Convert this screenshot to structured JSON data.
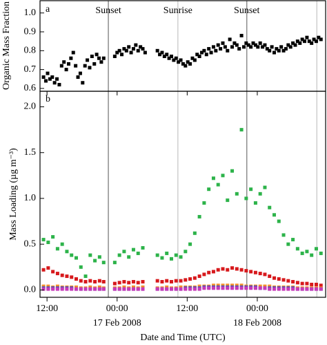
{
  "chart_data": [
    {
      "type": "scatter",
      "panel_label": "a",
      "ylabel": "Organic Mass Fraction",
      "xlim": [
        10.8,
        59.7
      ],
      "ylim": [
        0.585,
        1.065
      ],
      "xticks": [
        12,
        24,
        36,
        48
      ],
      "yticks": [
        0.6,
        0.7,
        0.8,
        0.9,
        {
          "value": 1,
          "label": "1.0"
        }
      ],
      "annotations": [
        {
          "x": 22.5,
          "text": "Sunset",
          "color": "#8c8c8c"
        },
        {
          "x": 34.4,
          "text": "Sunrise",
          "color": "#cfcfcf"
        },
        {
          "x": 46.2,
          "text": "Sunset",
          "color": "#8c8c8c"
        },
        {
          "x": 58.2,
          "color": "#cfcfcf"
        }
      ],
      "x": [
        11.4,
        11.8,
        12.1,
        12.5,
        12.9,
        13.3,
        13.7,
        14.1,
        14.5,
        14.9,
        15.3,
        15.7,
        16.1,
        16.5,
        16.9,
        17.3,
        17.7,
        18.1,
        18.5,
        18.9,
        19.3,
        19.7,
        20.1,
        20.5,
        20.9,
        21.3,
        21.7,
        23.6,
        24.0,
        24.4,
        24.8,
        25.2,
        25.6,
        26.0,
        26.4,
        26.8,
        27.2,
        27.6,
        28.0,
        28.4,
        28.8,
        30.9,
        31.3,
        31.7,
        32.1,
        32.5,
        32.9,
        33.3,
        33.7,
        34.1,
        34.5,
        34.9,
        35.3,
        35.7,
        36.1,
        36.5,
        36.9,
        37.3,
        37.7,
        38.1,
        38.5,
        38.9,
        39.3,
        39.7,
        40.1,
        40.5,
        40.9,
        41.3,
        41.7,
        42.1,
        42.5,
        42.9,
        43.3,
        43.7,
        44.1,
        44.5,
        44.9,
        45.3,
        45.7,
        46.1,
        46.5,
        46.9,
        47.3,
        47.7,
        48.1,
        48.5,
        48.9,
        49.3,
        49.7,
        50.1,
        50.5,
        50.9,
        51.3,
        51.7,
        52.1,
        52.5,
        52.9,
        53.3,
        53.7,
        54.1,
        54.5,
        54.9,
        55.3,
        55.7,
        56.1,
        56.5,
        56.9,
        57.3,
        57.7,
        58.1,
        58.5,
        58.9
      ],
      "series": [
        {
          "color": "#000000",
          "values": [
            0.66,
            0.64,
            0.68,
            0.65,
            0.66,
            0.63,
            0.65,
            0.62,
            0.72,
            0.74,
            0.7,
            0.73,
            0.76,
            0.79,
            0.72,
            0.66,
            0.68,
            0.63,
            0.72,
            0.75,
            0.71,
            0.77,
            0.73,
            0.78,
            0.76,
            0.74,
            0.76,
            0.77,
            0.79,
            0.8,
            0.78,
            0.81,
            0.8,
            0.82,
            0.79,
            0.81,
            0.83,
            0.8,
            0.82,
            0.81,
            0.79,
            0.8,
            0.78,
            0.79,
            0.77,
            0.78,
            0.76,
            0.77,
            0.75,
            0.76,
            0.74,
            0.75,
            0.73,
            0.72,
            0.74,
            0.73,
            0.76,
            0.75,
            0.78,
            0.77,
            0.79,
            0.8,
            0.78,
            0.81,
            0.79,
            0.82,
            0.8,
            0.83,
            0.81,
            0.84,
            0.82,
            0.8,
            0.86,
            0.82,
            0.84,
            0.83,
            0.81,
            0.88,
            0.82,
            0.84,
            0.83,
            0.82,
            0.84,
            0.83,
            0.82,
            0.84,
            0.82,
            0.83,
            0.81,
            0.8,
            0.82,
            0.79,
            0.81,
            0.8,
            0.82,
            0.8,
            0.81,
            0.83,
            0.82,
            0.84,
            0.83,
            0.85,
            0.84,
            0.86,
            0.85,
            0.87,
            0.85,
            0.84,
            0.86,
            0.85,
            0.87,
            0.86
          ]
        }
      ]
    },
    {
      "type": "scatter",
      "panel_label": "b",
      "ylabel": "Mass Loading (µg m⁻³)",
      "xlabel": "Date and Time (UTC)",
      "xlim": [
        10.8,
        59.7
      ],
      "ylim": [
        -0.08,
        2.17
      ],
      "xticks": [
        {
          "value": 12,
          "label": "12:00"
        },
        {
          "value": 24,
          "label": "00:00"
        },
        {
          "value": 36,
          "label": "12:00"
        },
        {
          "value": 48,
          "label": "00:00"
        }
      ],
      "yticks": [
        {
          "value": 0,
          "label": "0.0"
        },
        0.5,
        {
          "value": 1,
          "label": "1.0"
        },
        1.5,
        {
          "value": 2,
          "label": "2.0"
        }
      ],
      "date_labels": [
        {
          "x": 24,
          "text": "17 Feb 2008"
        },
        {
          "x": 48,
          "text": "18 Feb 2008"
        }
      ],
      "x": [
        11.4,
        12.2,
        13.0,
        13.8,
        14.6,
        15.4,
        16.2,
        17.0,
        17.8,
        18.6,
        19.4,
        20.2,
        21.0,
        21.7,
        23.6,
        24.4,
        25.2,
        26.0,
        26.8,
        27.6,
        28.4,
        30.9,
        31.7,
        32.5,
        33.3,
        34.1,
        34.9,
        35.7,
        36.5,
        37.3,
        38.1,
        38.9,
        39.7,
        40.5,
        41.3,
        42.1,
        42.9,
        43.7,
        44.5,
        45.3,
        46.1,
        46.9,
        47.7,
        48.5,
        49.3,
        50.1,
        50.9,
        51.7,
        52.5,
        53.3,
        54.1,
        54.9,
        55.7,
        56.5,
        57.3,
        58.1,
        58.9
      ],
      "series": [
        {
          "color": "#2db34a",
          "values": [
            0.55,
            0.52,
            0.58,
            0.45,
            0.5,
            0.42,
            0.38,
            0.35,
            0.25,
            0.15,
            0.38,
            0.32,
            0.36,
            0.3,
            0.3,
            0.38,
            0.42,
            0.36,
            0.44,
            0.4,
            0.46,
            0.38,
            0.35,
            0.4,
            0.34,
            0.38,
            0.36,
            0.42,
            0.5,
            0.62,
            0.8,
            0.95,
            1.1,
            1.22,
            1.15,
            1.25,
            0.98,
            1.3,
            1.05,
            1.75,
            1.0,
            1.1,
            0.95,
            1.05,
            1.12,
            0.9,
            0.82,
            0.75,
            0.6,
            0.5,
            0.55,
            0.45,
            0.4,
            0.42,
            0.38,
            0.45,
            0.4
          ]
        },
        {
          "color": "#d7191c",
          "values": [
            0.22,
            0.24,
            0.2,
            0.18,
            0.16,
            0.15,
            0.14,
            0.12,
            0.1,
            0.09,
            0.1,
            0.09,
            0.1,
            0.09,
            0.07,
            0.08,
            0.09,
            0.08,
            0.09,
            0.08,
            0.09,
            0.1,
            0.09,
            0.1,
            0.09,
            0.1,
            0.1,
            0.11,
            0.12,
            0.13,
            0.15,
            0.17,
            0.19,
            0.2,
            0.22,
            0.23,
            0.22,
            0.24,
            0.23,
            0.22,
            0.21,
            0.2,
            0.19,
            0.18,
            0.17,
            0.15,
            0.13,
            0.12,
            0.11,
            0.1,
            0.09,
            0.08,
            0.07,
            0.07,
            0.06,
            0.06,
            0.05
          ]
        },
        {
          "color": "#f28e2b",
          "values": [
            0.04,
            0.04,
            0.03,
            0.04,
            0.03,
            0.03,
            0.03,
            0.03,
            0.02,
            0.02,
            0.03,
            0.02,
            0.03,
            0.02,
            0.02,
            0.02,
            0.03,
            0.02,
            0.03,
            0.02,
            0.03,
            0.02,
            0.02,
            0.03,
            0.02,
            0.02,
            0.03,
            0.03,
            0.03,
            0.03,
            0.04,
            0.04,
            0.04,
            0.05,
            0.05,
            0.05,
            0.05,
            0.05,
            0.05,
            0.05,
            0.04,
            0.04,
            0.04,
            0.04,
            0.04,
            0.04,
            0.03,
            0.03,
            0.03,
            0.03,
            0.03,
            0.02,
            0.02,
            0.02,
            0.02,
            0.02,
            0.02
          ]
        },
        {
          "color": "#3b4cc0",
          "values": [
            0.02,
            0.02,
            0.02,
            0.02,
            0.02,
            0.02,
            0.02,
            0.01,
            0.01,
            0.01,
            0.01,
            0.01,
            0.01,
            0.01,
            0.01,
            0.01,
            0.01,
            0.01,
            0.01,
            0.01,
            0.01,
            0.01,
            0.01,
            0.01,
            0.01,
            0.01,
            0.01,
            0.02,
            0.02,
            0.02,
            0.02,
            0.03,
            0.03,
            0.03,
            0.03,
            0.03,
            0.03,
            0.03,
            0.03,
            0.03,
            0.03,
            0.03,
            0.03,
            0.02,
            0.02,
            0.02,
            0.02,
            0.02,
            0.02,
            0.02,
            0.02,
            0.01,
            0.01,
            0.01,
            0.01,
            0.01,
            0.01
          ]
        },
        {
          "color": "#c73ab8",
          "values": [
            0.01,
            0.01,
            0.01,
            0.01,
            0.01,
            0.01,
            0.01,
            0.01,
            0.01,
            0.01,
            0.01,
            0.01,
            0.01,
            0.01,
            0.01,
            0.01,
            0.01,
            0.01,
            0.01,
            0.01,
            0.01,
            0.01,
            0.01,
            0.01,
            0.01,
            0.01,
            0.01,
            0.01,
            0.01,
            0.01,
            0.01,
            0.02,
            0.02,
            0.02,
            0.02,
            0.02,
            0.02,
            0.02,
            0.02,
            0.02,
            0.02,
            0.02,
            0.02,
            0.02,
            0.02,
            0.01,
            0.01,
            0.01,
            0.01,
            0.01,
            0.01,
            0.01,
            0.01,
            0.01,
            0.01,
            0.01,
            0.01
          ]
        }
      ]
    }
  ]
}
